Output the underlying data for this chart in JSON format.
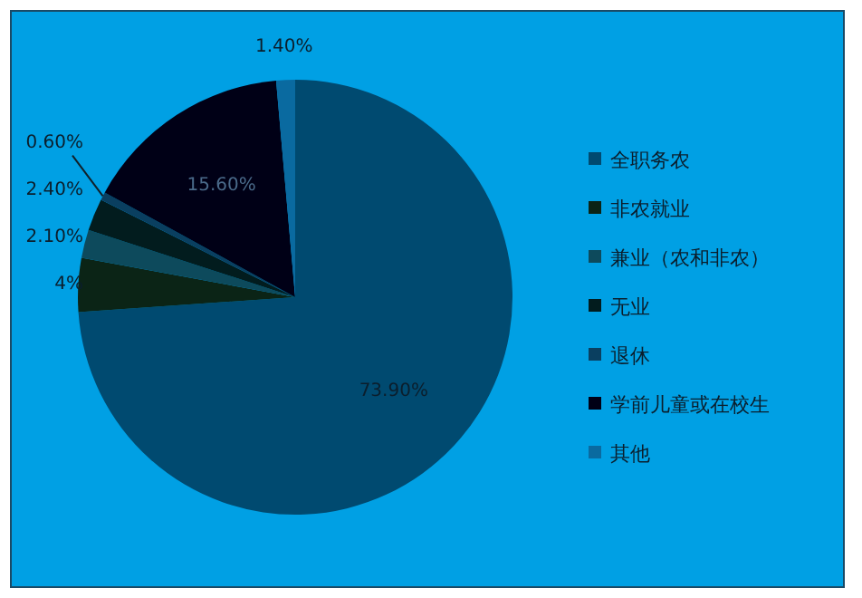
{
  "chart_data": {
    "type": "pie",
    "categories": [
      "全职务农",
      "非农就业",
      "兼业（农和非农）",
      "无业",
      "退休",
      "学前儿童或在校生",
      "其他"
    ],
    "values": [
      73.9,
      4,
      2.1,
      2.4,
      0.6,
      15.6,
      1.4
    ],
    "value_labels": [
      "73.90%",
      "4%",
      "2.10%",
      "2.40%",
      "0.60%",
      "15.60%",
      "1.40%"
    ],
    "colors": [
      "#004a70",
      "#0b2416",
      "#0d4a5c",
      "#021c1e",
      "#0a3f60",
      "#000016",
      "#0a6aa0"
    ],
    "legend": "right"
  }
}
